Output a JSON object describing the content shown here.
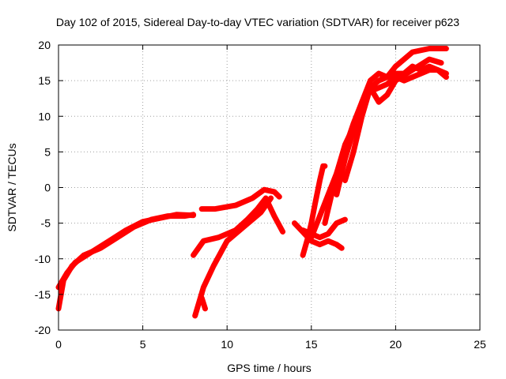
{
  "chart_data": {
    "type": "scatter",
    "title": "Day 102 of 2015, Sidereal Day-to-day VTEC variation (SDTVAR) for receiver p623",
    "xlabel": "GPS time / hours",
    "ylabel": "SDTVAR / TECUs",
    "xlim": [
      0,
      25
    ],
    "ylim": [
      -20,
      20
    ],
    "x_ticks": [
      0,
      5,
      10,
      15,
      20,
      25
    ],
    "y_ticks": [
      -20,
      -15,
      -10,
      -5,
      0,
      5,
      10,
      15,
      20
    ],
    "x_tick_labels": [
      "0",
      "5",
      "10",
      "15",
      "20",
      "25"
    ],
    "y_tick_labels": [
      "-20",
      "-15",
      "-10",
      "-5",
      "0",
      "5",
      "10",
      "15",
      "20"
    ],
    "grid": true,
    "marker": "+",
    "color": "#ff0000",
    "series": [
      {
        "x": [
          0.0,
          0.3,
          0.8,
          1.5,
          2.5,
          3.5,
          4.5,
          5.5,
          6.5,
          7.5,
          8.0
        ],
        "y": [
          -17,
          -13,
          -11,
          -9.5,
          -8.5,
          -7,
          -5.5,
          -4.5,
          -4,
          -4,
          -3.8
        ]
      },
      {
        "x": [
          0.0,
          0.5,
          1.0,
          2.0,
          3.0,
          4.0,
          5.0,
          6.0,
          7.0,
          8.0
        ],
        "y": [
          -14,
          -12,
          -10.5,
          -9,
          -7.5,
          -6,
          -4.8,
          -4.3,
          -3.8,
          -3.9
        ]
      },
      {
        "x": [
          8.1,
          8.6,
          9.2,
          10.0,
          11.0,
          12.0,
          12.6
        ],
        "y": [
          -18,
          -14,
          -11,
          -7.5,
          -5.5,
          -3.5,
          -1.5
        ]
      },
      {
        "x": [
          8.0,
          8.6,
          9.5,
          10.5,
          11.2,
          11.8,
          12.3,
          12.8,
          13.3
        ],
        "y": [
          -9.5,
          -7.5,
          -7,
          -6,
          -4.5,
          -3,
          -1.5,
          -4,
          -6.2
        ]
      },
      {
        "x": [
          8.5,
          9.3,
          10.5,
          11.5,
          12.2,
          12.8,
          13.1
        ],
        "y": [
          -3,
          -3,
          -2.5,
          -1.5,
          -0.3,
          -0.6,
          -1.3
        ]
      },
      {
        "x": [
          8.5,
          8.7
        ],
        "y": [
          -15.5,
          -17
        ]
      },
      {
        "x": [
          14.0,
          14.6,
          15.0,
          15.5,
          16.0,
          16.5,
          16.8
        ],
        "y": [
          -5,
          -6.5,
          -7.5,
          -8,
          -7.5,
          -8,
          -8.5
        ]
      },
      {
        "x": [
          14.5,
          15.0,
          15.5,
          16.0,
          16.5,
          17.0
        ],
        "y": [
          -6,
          -6.5,
          -7,
          -6.5,
          -5,
          -4.5
        ]
      },
      {
        "x": [
          14.5,
          14.8,
          15.0,
          15.2,
          15.5,
          15.7,
          15.8
        ],
        "y": [
          -9.5,
          -7,
          -5,
          -2.5,
          1,
          3,
          3
        ]
      },
      {
        "x": [
          15.0,
          15.5,
          16.0,
          16.5,
          17.0,
          17.5
        ],
        "y": [
          -7,
          -4,
          -1,
          2,
          6,
          8.5
        ]
      },
      {
        "x": [
          15.8,
          16.2,
          16.5,
          17.0,
          17.5,
          18.0,
          18.5,
          19.0,
          19.5,
          20.0,
          20.5,
          21.0,
          21.5,
          22.0,
          22.5,
          23.0
        ],
        "y": [
          -5,
          -1,
          2,
          5.5,
          9,
          12,
          15,
          16,
          15.5,
          16,
          16,
          17,
          16.5,
          17,
          16.5,
          15.5
        ]
      },
      {
        "x": [
          16.5,
          17.0,
          17.5,
          18.0,
          18.5,
          19.0,
          19.5,
          20.0,
          20.5,
          21.0,
          22.0,
          23.0
        ],
        "y": [
          -1,
          4,
          8,
          12,
          14,
          15,
          15.5,
          17,
          18,
          19,
          19.5,
          19.5
        ]
      },
      {
        "x": [
          17.0,
          17.5,
          18.0,
          18.5,
          19.0,
          19.5,
          20.0,
          21.0,
          22.0,
          22.7
        ],
        "y": [
          1,
          5,
          10,
          14,
          12,
          13,
          15,
          16.5,
          18,
          17.5
        ]
      },
      {
        "x": [
          18.5,
          19.0,
          19.5,
          20.0,
          20.5,
          21.0,
          21.5,
          22.0,
          22.5,
          23.0
        ],
        "y": [
          13.5,
          14,
          14.5,
          15.5,
          15,
          15.5,
          16,
          16.5,
          16.5,
          16
        ]
      }
    ]
  }
}
